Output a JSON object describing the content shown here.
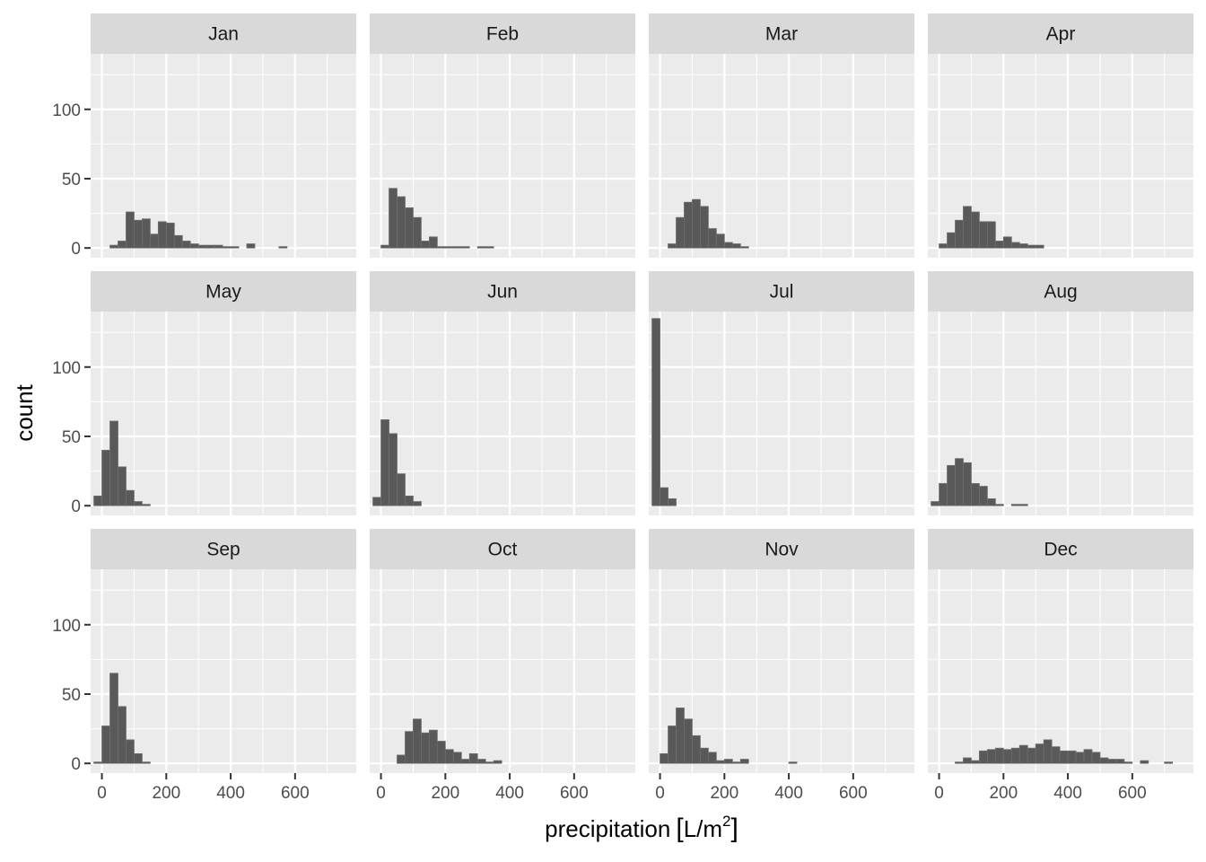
{
  "chart_data": {
    "type": "bar",
    "chart_kind": "faceted histogram",
    "xlabel": "precipitation [L/m²]",
    "xlabel_parts": {
      "open": "[",
      "base": "L/m",
      "sup": "2",
      "close": "]"
    },
    "xlabel_prefix": "precipitation",
    "ylabel": "count",
    "xlim": [
      -35,
      790
    ],
    "ylim": [
      -7,
      140
    ],
    "x_ticks": [
      "0",
      "200",
      "400",
      "600"
    ],
    "x_tick_values": [
      0,
      200,
      400,
      600
    ],
    "y_ticks": [
      "0",
      "50",
      "100"
    ],
    "y_tick_values": [
      0,
      50,
      100
    ],
    "bin_width": 25,
    "grid": true,
    "facet_layout": {
      "rows": 3,
      "cols": 4
    },
    "colors": {
      "bar_fill": "#595959",
      "bar_stroke": "#6e6e6e",
      "panel_bg": "#ebebeb",
      "grid": "#ffffff",
      "strip_bg": "#d9d9d9"
    },
    "facets": [
      {
        "label": "Jan",
        "bins": [
          [
            0,
            0
          ],
          [
            25,
            2
          ],
          [
            50,
            5
          ],
          [
            75,
            26
          ],
          [
            100,
            20
          ],
          [
            125,
            21
          ],
          [
            150,
            10
          ],
          [
            175,
            19
          ],
          [
            200,
            18
          ],
          [
            225,
            9
          ],
          [
            250,
            5
          ],
          [
            275,
            3
          ],
          [
            300,
            2
          ],
          [
            325,
            2
          ],
          [
            350,
            2
          ],
          [
            375,
            1
          ],
          [
            400,
            1
          ],
          [
            425,
            0
          ],
          [
            450,
            3
          ],
          [
            475,
            0
          ],
          [
            500,
            0
          ],
          [
            525,
            0
          ],
          [
            550,
            1
          ],
          [
            575,
            0
          ]
        ]
      },
      {
        "label": "Feb",
        "bins": [
          [
            0,
            2
          ],
          [
            25,
            43
          ],
          [
            50,
            37
          ],
          [
            75,
            29
          ],
          [
            100,
            22
          ],
          [
            125,
            5
          ],
          [
            150,
            8
          ],
          [
            175,
            1
          ],
          [
            200,
            1
          ],
          [
            225,
            1
          ],
          [
            250,
            1
          ],
          [
            275,
            0
          ],
          [
            300,
            1
          ],
          [
            325,
            1
          ]
        ]
      },
      {
        "label": "Mar",
        "bins": [
          [
            25,
            3
          ],
          [
            50,
            22
          ],
          [
            75,
            33
          ],
          [
            100,
            35
          ],
          [
            125,
            30
          ],
          [
            150,
            14
          ],
          [
            175,
            10
          ],
          [
            200,
            4
          ],
          [
            225,
            3
          ],
          [
            250,
            1
          ]
        ]
      },
      {
        "label": "Apr",
        "bins": [
          [
            0,
            3
          ],
          [
            25,
            11
          ],
          [
            50,
            20
          ],
          [
            75,
            30
          ],
          [
            100,
            26
          ],
          [
            125,
            19
          ],
          [
            150,
            19
          ],
          [
            175,
            5
          ],
          [
            200,
            8
          ],
          [
            225,
            4
          ],
          [
            250,
            3
          ],
          [
            275,
            2
          ],
          [
            300,
            2
          ]
        ]
      },
      {
        "label": "May",
        "bins": [
          [
            -25,
            7
          ],
          [
            0,
            40
          ],
          [
            25,
            61
          ],
          [
            50,
            28
          ],
          [
            75,
            11
          ],
          [
            100,
            3
          ],
          [
            125,
            1
          ]
        ]
      },
      {
        "label": "Jun",
        "bins": [
          [
            -25,
            6
          ],
          [
            0,
            62
          ],
          [
            25,
            52
          ],
          [
            50,
            23
          ],
          [
            75,
            7
          ],
          [
            100,
            3
          ]
        ]
      },
      {
        "label": "Jul",
        "bins": [
          [
            -25,
            135
          ],
          [
            0,
            13
          ],
          [
            25,
            5
          ]
        ]
      },
      {
        "label": "Aug",
        "bins": [
          [
            -25,
            3
          ],
          [
            0,
            16
          ],
          [
            25,
            29
          ],
          [
            50,
            34
          ],
          [
            75,
            31
          ],
          [
            100,
            16
          ],
          [
            125,
            14
          ],
          [
            150,
            5
          ],
          [
            175,
            1
          ],
          [
            200,
            0
          ],
          [
            225,
            1
          ],
          [
            250,
            1
          ]
        ]
      },
      {
        "label": "Sep",
        "bins": [
          [
            -25,
            1
          ],
          [
            0,
            27
          ],
          [
            25,
            65
          ],
          [
            50,
            41
          ],
          [
            75,
            17
          ],
          [
            100,
            7
          ],
          [
            125,
            1
          ]
        ]
      },
      {
        "label": "Oct",
        "bins": [
          [
            50,
            6
          ],
          [
            75,
            23
          ],
          [
            100,
            32
          ],
          [
            125,
            22
          ],
          [
            150,
            24
          ],
          [
            175,
            16
          ],
          [
            200,
            10
          ],
          [
            225,
            8
          ],
          [
            250,
            3
          ],
          [
            275,
            7
          ],
          [
            300,
            3
          ],
          [
            325,
            1
          ],
          [
            350,
            2
          ]
        ]
      },
      {
        "label": "Nov",
        "bins": [
          [
            0,
            7
          ],
          [
            25,
            27
          ],
          [
            50,
            40
          ],
          [
            75,
            32
          ],
          [
            100,
            20
          ],
          [
            125,
            11
          ],
          [
            150,
            8
          ],
          [
            175,
            2
          ],
          [
            200,
            3
          ],
          [
            225,
            1
          ],
          [
            250,
            3
          ],
          [
            275,
            0
          ],
          [
            300,
            0
          ],
          [
            325,
            0
          ],
          [
            350,
            0
          ],
          [
            375,
            0
          ],
          [
            400,
            1
          ]
        ]
      },
      {
        "label": "Dec",
        "bins": [
          [
            50,
            1
          ],
          [
            75,
            4
          ],
          [
            100,
            2
          ],
          [
            125,
            9
          ],
          [
            150,
            10
          ],
          [
            175,
            11
          ],
          [
            200,
            10
          ],
          [
            225,
            11
          ],
          [
            250,
            13
          ],
          [
            275,
            11
          ],
          [
            300,
            14
          ],
          [
            325,
            17
          ],
          [
            350,
            12
          ],
          [
            375,
            9
          ],
          [
            400,
            9
          ],
          [
            425,
            8
          ],
          [
            450,
            10
          ],
          [
            475,
            8
          ],
          [
            500,
            4
          ],
          [
            525,
            3
          ],
          [
            550,
            3
          ],
          [
            575,
            1
          ],
          [
            600,
            0
          ],
          [
            625,
            2
          ],
          [
            650,
            0
          ],
          [
            675,
            0
          ],
          [
            700,
            1
          ],
          [
            725,
            0
          ]
        ]
      }
    ]
  }
}
